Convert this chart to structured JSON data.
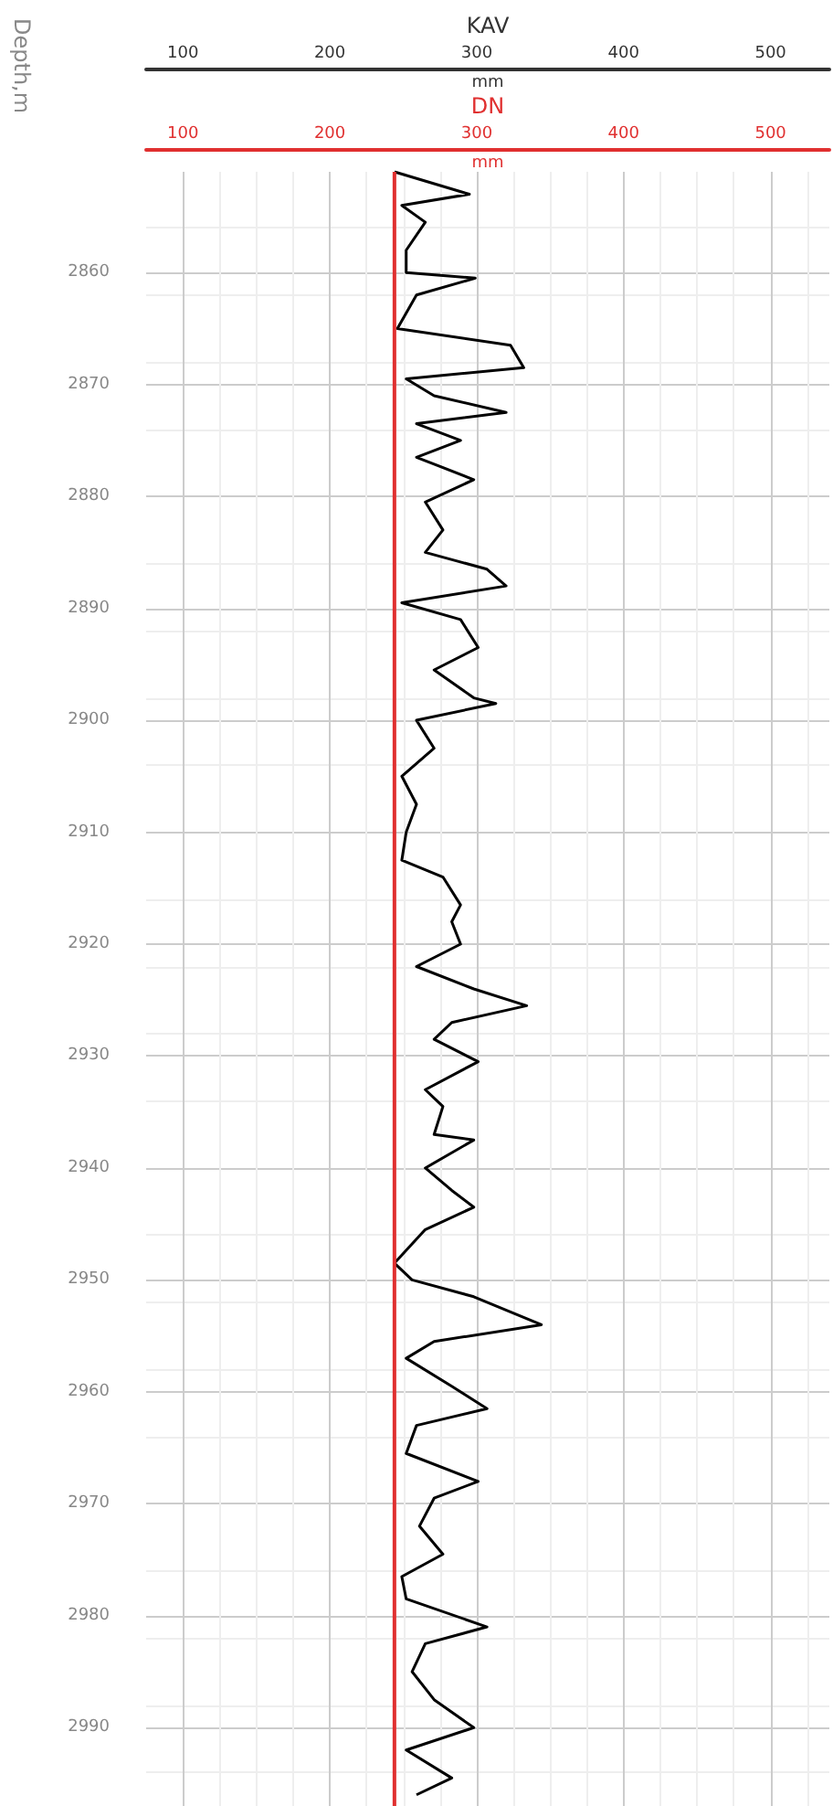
{
  "chart_data": {
    "type": "line",
    "xlabel": "KAV",
    "x2label": "DN",
    "ylabel": "Depth,m",
    "annotations": [
      "mm",
      "mm"
    ],
    "xlim": [
      75,
      540
    ],
    "xticks": [
      100,
      200,
      300,
      400,
      500
    ],
    "x2lim": [
      75,
      540
    ],
    "x2ticks": [
      100,
      200,
      300,
      400,
      500
    ],
    "ylim": [
      2997,
      2851
    ],
    "yticks": [
      2860,
      2870,
      2880,
      2890,
      2900,
      2910,
      2920,
      2930,
      2940,
      2950,
      2960,
      2970,
      2980,
      2990
    ],
    "grid": true,
    "marker": "none",
    "line_style": "solid",
    "series": [
      {
        "color": "#000000",
        "x": [
          244,
          295,
          249,
          265,
          252,
          252,
          299,
          259,
          246,
          323,
          332,
          252,
          271,
          320,
          259,
          289,
          259,
          298,
          265,
          277,
          265,
          307,
          320,
          249,
          289,
          301,
          271,
          298,
          313,
          259,
          271,
          249,
          259,
          252,
          249,
          277,
          289,
          283,
          289,
          259,
          298,
          334,
          283,
          271,
          301,
          265,
          277,
          271,
          298,
          265,
          283,
          298,
          265,
          244,
          256,
          298,
          344,
          271,
          252,
          283,
          307,
          259,
          252,
          301,
          271,
          261,
          277,
          249,
          252,
          307,
          265,
          256,
          271,
          298,
          252,
          283,
          259
        ],
        "values": [
          2851,
          2853,
          2854,
          2855.5,
          2858,
          2860,
          2860.5,
          2862,
          2865,
          2866.5,
          2868.5,
          2869.5,
          2871,
          2872.5,
          2873.5,
          2875,
          2876.5,
          2878.5,
          2880.5,
          2883,
          2885,
          2886.5,
          2888,
          2889.5,
          2891,
          2893.5,
          2895.5,
          2898,
          2898.5,
          2900,
          2902.5,
          2905,
          2907.5,
          2910,
          2912.5,
          2914,
          2916.5,
          2918,
          2920,
          2922,
          2924,
          2925.5,
          2927,
          2928.5,
          2930.5,
          2933,
          2934.5,
          2937,
          2937.5,
          2940,
          2942,
          2943.5,
          2945.5,
          2948.5,
          2950,
          2951.5,
          2954,
          2955.5,
          2957,
          2959.5,
          2961.5,
          2963,
          2965.5,
          2968,
          2969.5,
          2972,
          2974.5,
          2976.5,
          2978.5,
          2981,
          2982.5,
          2985,
          2987.5,
          2990,
          2992,
          2994.5,
          2996
        ]
      },
      {
        "color": "#e03030",
        "axis": "x2",
        "x": [
          244,
          244
        ],
        "values": [
          2851,
          2997
        ]
      }
    ]
  }
}
